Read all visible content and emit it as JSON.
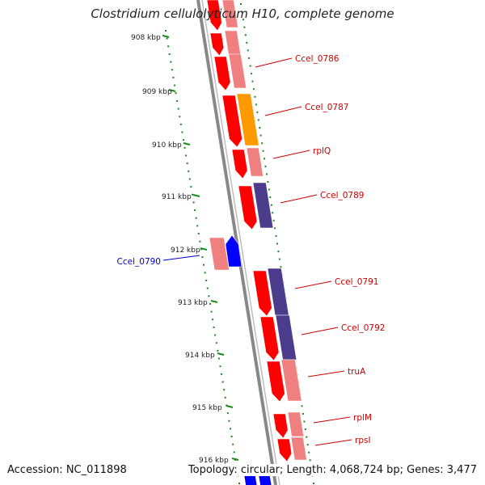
{
  "title": "Clostridium cellulolyticum H10, complete genome",
  "footer": {
    "accession": "Accession: NC_011898",
    "summary": "Topology: circular; Length: 4,068,724 bp; Genes: 3,477"
  },
  "scale_labels": [
    "908 kbp",
    "909 kbp",
    "910 kbp",
    "911 kbp",
    "912 kbp",
    "913 kbp",
    "914 kbp",
    "915 kbp",
    "916 kbp"
  ],
  "gene_labels": [
    {
      "text": "Ccel_0786",
      "strand": "forward"
    },
    {
      "text": "Ccel_0787",
      "strand": "forward"
    },
    {
      "text": "rplQ",
      "strand": "forward"
    },
    {
      "text": "Ccel_0789",
      "strand": "forward"
    },
    {
      "text": "Ccel_0790",
      "strand": "reverse"
    },
    {
      "text": "Ccel_0791",
      "strand": "forward"
    },
    {
      "text": "Ccel_0792",
      "strand": "forward"
    },
    {
      "text": "truA",
      "strand": "forward"
    },
    {
      "text": "rplM",
      "strand": "forward"
    },
    {
      "text": "rpsI",
      "strand": "forward"
    }
  ],
  "colors": {
    "forward_label": "#cc0000",
    "reverse_label": "#0000cc",
    "forward_cds": "#ff0000",
    "reverse_cds": "#0000ff",
    "pink_feature": "#f08080",
    "orange_feature": "#ff9900",
    "purple_feature": "#4c3d8c",
    "backbone": "#888888",
    "tick": "#1a8a1a"
  }
}
